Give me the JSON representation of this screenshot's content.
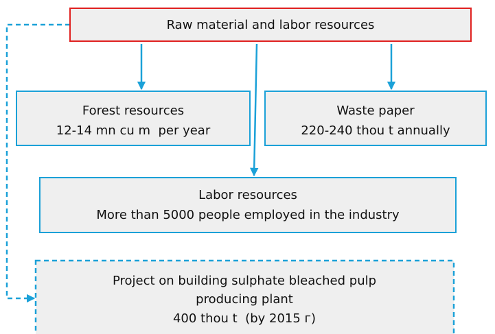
{
  "nodes": [
    {
      "lines": [
        "Raw material and labor resources"
      ]
    },
    {
      "lines": [
        "Forest resources",
        "12-14 mn cu m  per year"
      ]
    },
    {
      "lines": [
        "Waste paper",
        "220-240 thou t annually"
      ]
    },
    {
      "lines": [
        "Labor resources",
        "More than 5000 people employed in the industry"
      ]
    },
    {
      "lines": [
        "Project on building sulphate bleached pulp",
        "producing plant",
        "400 thou t  (by 2015 г)"
      ]
    }
  ]
}
